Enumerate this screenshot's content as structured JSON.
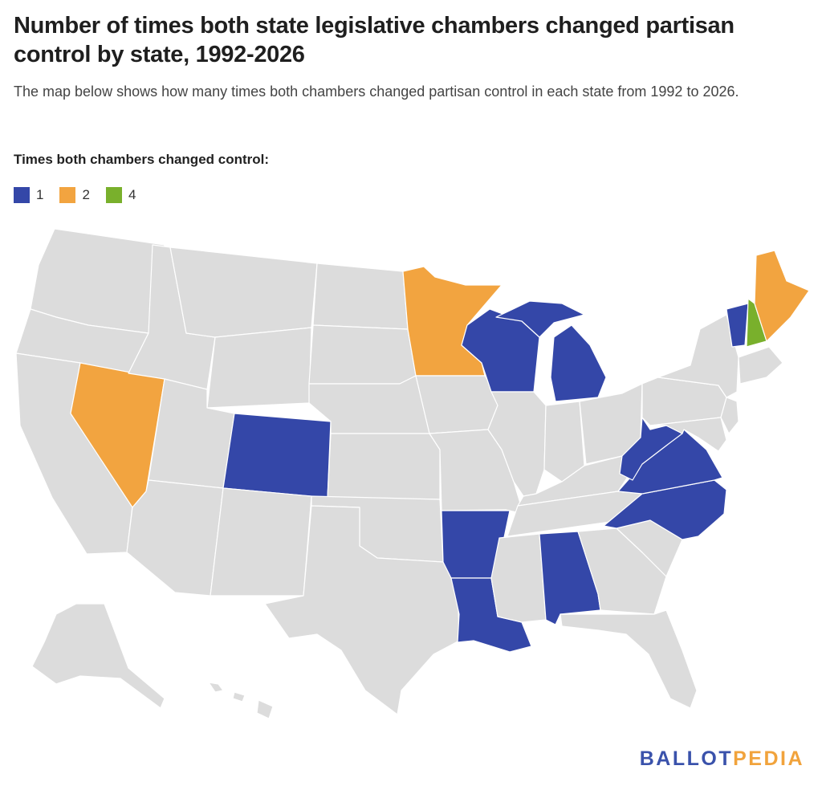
{
  "title": "Number of times both state legislative chambers changed partisan control by state, 1992-2026",
  "subtitle": "The map below shows how many times both chambers changed partisan control in each state from 1992 to 2026.",
  "legend": {
    "title": "Times both chambers changed control:",
    "items": [
      {
        "label": "1",
        "color": "#3447a8"
      },
      {
        "label": "2",
        "color": "#f2a440"
      },
      {
        "label": "4",
        "color": "#79b02c"
      }
    ]
  },
  "default_color": "#dcdcdc",
  "states": {
    "NV": 2,
    "MN": 2,
    "ME": 2,
    "NH": 4,
    "CO": 1,
    "WI": 1,
    "MI": 1,
    "VT": 1,
    "WV": 1,
    "VA": 1,
    "NC": 1,
    "AR": 1,
    "LA": 1,
    "AL": 1
  },
  "logo": {
    "part1": "BALLOT",
    "part2": "PEDIA"
  }
}
